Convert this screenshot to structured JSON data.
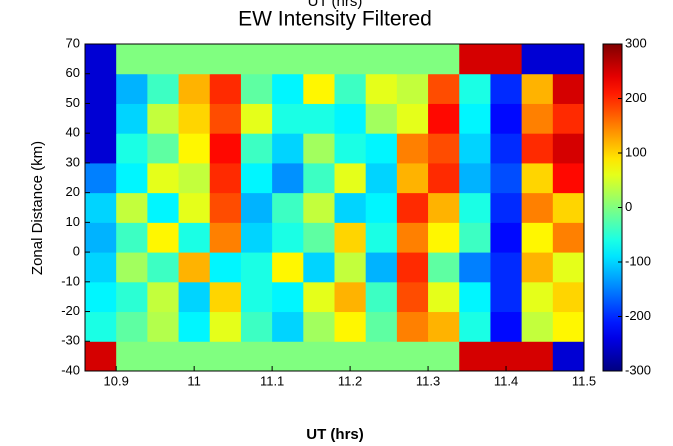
{
  "chart_data": {
    "type": "heatmap",
    "header": "UT (hrs)",
    "title": "EW Intensity Filtered",
    "xlabel": "UT (hrs)",
    "ylabel": "Zonal Distance (km)",
    "xlim": [
      10.86,
      11.5
    ],
    "ylim": [
      -40,
      70
    ],
    "xticks": [
      10.9,
      11,
      11.1,
      11.2,
      11.3,
      11.4,
      11.5
    ],
    "yticks": [
      -40,
      -30,
      -20,
      -10,
      0,
      10,
      20,
      30,
      40,
      50,
      60,
      70
    ],
    "xbins": [
      10.86,
      10.9,
      10.94,
      10.98,
      11.02,
      11.06,
      11.1,
      11.14,
      11.18,
      11.22,
      11.26,
      11.3,
      11.34,
      11.38,
      11.42,
      11.46,
      11.5
    ],
    "ybins": [
      -40,
      -30,
      -20,
      -10,
      0,
      10,
      20,
      30,
      40,
      50,
      60,
      70
    ],
    "values": [
      [
        250,
        0,
        0,
        0,
        0,
        0,
        0,
        0,
        0,
        0,
        0,
        0,
        250,
        250,
        250,
        -250
      ],
      [
        -60,
        -20,
        30,
        -80,
        60,
        -40,
        -100,
        20,
        80,
        -20,
        150,
        120,
        -60,
        -220,
        40,
        80
      ],
      [
        -80,
        -50,
        40,
        -100,
        100,
        -60,
        -80,
        60,
        120,
        -40,
        180,
        60,
        -80,
        -200,
        60,
        100
      ],
      [
        -100,
        20,
        -40,
        120,
        -80,
        -60,
        80,
        -100,
        40,
        -120,
        200,
        -20,
        -150,
        -200,
        120,
        60
      ],
      [
        -120,
        -40,
        80,
        -60,
        150,
        -100,
        -60,
        -20,
        100,
        -60,
        150,
        80,
        -40,
        -220,
        80,
        150
      ],
      [
        -100,
        40,
        -80,
        60,
        180,
        -120,
        -40,
        40,
        -100,
        -80,
        200,
        120,
        -60,
        -200,
        150,
        100
      ],
      [
        -150,
        -80,
        60,
        40,
        200,
        -80,
        -140,
        -40,
        60,
        -100,
        120,
        200,
        -120,
        -180,
        100,
        220
      ],
      [
        -250,
        -60,
        -20,
        80,
        220,
        -40,
        -100,
        20,
        -60,
        -80,
        150,
        180,
        -100,
        -200,
        200,
        250
      ],
      [
        -250,
        -100,
        40,
        100,
        180,
        60,
        -60,
        -60,
        -80,
        20,
        60,
        220,
        -80,
        -220,
        150,
        200
      ],
      [
        -250,
        -120,
        -40,
        120,
        200,
        -20,
        -80,
        80,
        -40,
        60,
        40,
        180,
        -60,
        -200,
        120,
        250
      ],
      [
        -250,
        0,
        0,
        0,
        0,
        0,
        0,
        0,
        0,
        0,
        0,
        0,
        250,
        250,
        -250,
        -250
      ]
    ],
    "colormap": "jet",
    "clim": [
      -300,
      300
    ],
    "cticks": [
      -300,
      -200,
      -100,
      0,
      100,
      200,
      300
    ]
  }
}
